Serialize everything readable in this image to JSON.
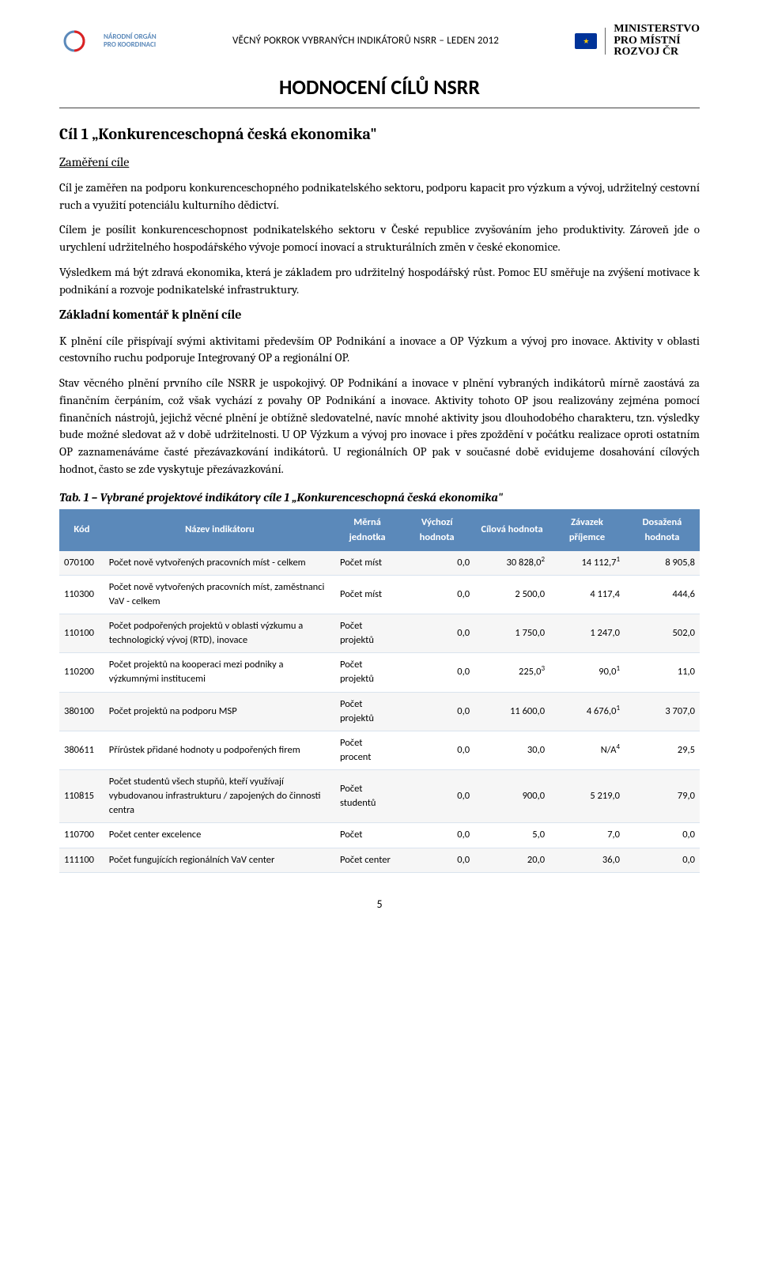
{
  "header": {
    "left_logo_line1": "NÁRODNÍ ORGÁN",
    "left_logo_line2": "PRO KOORDINACI",
    "center_title": "VĚCNÝ POKROK VYBRANÝCH INDIKÁTORŮ NSRR – LEDEN 2012",
    "right_logo_line1": "MINISTERSTVO",
    "right_logo_line2": "PRO MÍSTNÍ",
    "right_logo_line3": "ROZVOJ ČR"
  },
  "title": "HODNOCENÍ CÍLŮ NSRR",
  "section1_title": "Cíl 1 „Konkurenceschopná česká ekonomika\"",
  "sub_zam": "Zaměření cíle",
  "p1": "Cíl je zaměřen na podporu konkurenceschopného podnikatelského sektoru, podporu kapacit pro výzkum a vývoj, udržitelný cestovní ruch a využití potenciálu kulturního dědictví.",
  "p2": "Cílem je posílit konkurenceschopnost podnikatelského sektoru v České republice zvyšováním jeho produktivity. Zároveň jde o urychlení udržitelného hospodářského vývoje pomocí inovací a strukturálních změn v české ekonomice.",
  "p3": "Výsledkem má být zdravá ekonomika, která je základem pro udržitelný hospodářský růst. Pomoc EU směřuje na zvýšení motivace k podnikání a rozvoje podnikatelské infrastruktury.",
  "sub_kom": "Základní komentář k plnění cíle",
  "p4": "K plnění cíle přispívají svými aktivitami především OP Podnikání a inovace a OP Výzkum a vývoj pro inovace. Aktivity v oblasti cestovního ruchu podporuje Integrovaný OP a regionální OP.",
  "p5": "Stav věcného plnění prvního cíle NSRR je uspokojivý. OP Podnikání a inovace v plnění vybraných indikátorů mírně zaostává za finančním čerpáním, což však vychází z povahy OP Podnikání a inovace. Aktivity tohoto OP jsou realizovány zejména pomocí finančních nástrojů, jejichž věcné plnění je obtížně sledovatelné, navíc mnohé aktivity jsou dlouhodobého charakteru, tzn. výsledky bude možné sledovat až v době udržitelnosti. U OP Výzkum a vývoj pro inovace i přes zpoždění v počátku realizace oproti ostatním OP zaznamenáváme časté přezávazkování indikátorů. U regionálních OP pak v současné době evidujeme dosahování cílových hodnot, často se zde vyskytuje přezávazkování.",
  "table_caption": "Tab. 1 – Vybrané projektové indikátory cíle 1 „Konkurenceschopná česká ekonomika\"",
  "table": {
    "header_bg": "#5b89ba",
    "header_fg": "#ffffff",
    "row_odd_bg": "#f6f6f6",
    "row_even_bg": "#ffffff",
    "columns": [
      "Kód",
      "Název indikátoru",
      "Měrná jednotka",
      "Výchozí hodnota",
      "Cílová hodnota",
      "Závazek příjemce",
      "Dosažená hodnota"
    ],
    "rows": [
      {
        "kod": "070100",
        "name": "Počet nově vytvořených pracovních míst - celkem",
        "unit": "Počet míst",
        "vychozi": "0,0",
        "cilova": "30 828,0",
        "cilova_sup": "2",
        "zavazek": "14 112,7",
        "zavazek_sup": "1",
        "dosazena": "8 905,8"
      },
      {
        "kod": "110300",
        "name": "Počet nově vytvořených pracovních míst, zaměstnanci VaV - celkem",
        "unit": "Počet míst",
        "vychozi": "0,0",
        "cilova": "2 500,0",
        "cilova_sup": "",
        "zavazek": "4 117,4",
        "zavazek_sup": "",
        "dosazena": "444,6"
      },
      {
        "kod": "110100",
        "name": "Počet podpořených projektů v oblasti výzkumu a technologický vývoj (RTD), inovace",
        "unit": "Počet projektů",
        "vychozi": "0,0",
        "cilova": "1 750,0",
        "cilova_sup": "",
        "zavazek": "1 247,0",
        "zavazek_sup": "",
        "dosazena": "502,0"
      },
      {
        "kod": "110200",
        "name": "Počet projektů na kooperaci mezi podniky a výzkumnými institucemi",
        "unit": "Počet projektů",
        "vychozi": "0,0",
        "cilova": "225,0",
        "cilova_sup": "3",
        "zavazek": "90,0",
        "zavazek_sup": "1",
        "dosazena": "11,0"
      },
      {
        "kod": "380100",
        "name": "Počet projektů na podporu MSP",
        "unit": "Počet projektů",
        "vychozi": "0,0",
        "cilova": "11 600,0",
        "cilova_sup": "",
        "zavazek": "4 676,0",
        "zavazek_sup": "1",
        "dosazena": "3 707,0"
      },
      {
        "kod": "380611",
        "name": "Přírůstek přidané hodnoty u podpořených firem",
        "unit": "Počet procent",
        "vychozi": "0,0",
        "cilova": "30,0",
        "cilova_sup": "",
        "zavazek": "N/A",
        "zavazek_sup": "4",
        "dosazena": "29,5"
      },
      {
        "kod": "110815",
        "name": "Počet studentů všech stupňů, kteří využívají vybudovanou infrastrukturu / zapojených do činnosti centra",
        "unit": "Počet studentů",
        "vychozi": "0,0",
        "cilova": "900,0",
        "cilova_sup": "",
        "zavazek": "5 219,0",
        "zavazek_sup": "",
        "dosazena": "79,0"
      },
      {
        "kod": "110700",
        "name": "Počet center excelence",
        "unit": "Počet",
        "vychozi": "0,0",
        "cilova": "5,0",
        "cilova_sup": "",
        "zavazek": "7,0",
        "zavazek_sup": "",
        "dosazena": "0,0"
      },
      {
        "kod": "111100",
        "name": "Počet fungujících regionálních VaV center",
        "unit": "Počet center",
        "vychozi": "0,0",
        "cilova": "20,0",
        "cilova_sup": "",
        "zavazek": "36,0",
        "zavazek_sup": "",
        "dosazena": "0,0"
      }
    ]
  },
  "page_number": "5"
}
